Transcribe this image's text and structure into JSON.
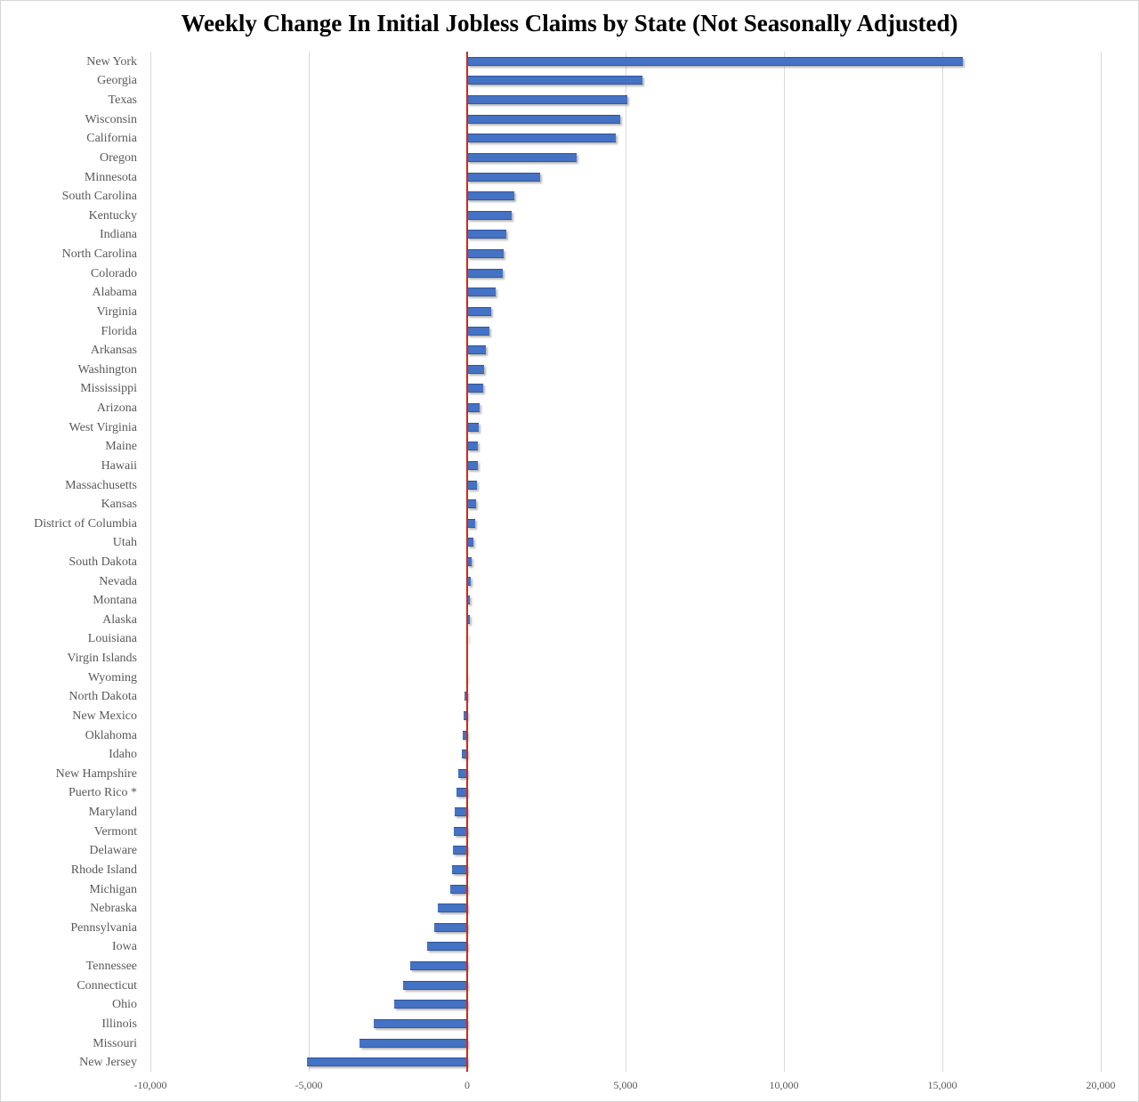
{
  "title": "Weekly Change In Initial Jobless Claims by State (Not Seasonally Adjusted)",
  "chart_data": {
    "type": "bar",
    "orientation": "horizontal",
    "title": "Weekly Change In Initial Jobless Claims by State (Not Seasonally Adjusted)",
    "xlabel": "",
    "ylabel": "",
    "xlim": [
      -10000,
      20000
    ],
    "x_ticks": [
      -10000,
      -5000,
      0,
      5000,
      10000,
      15000,
      20000
    ],
    "x_tick_labels": [
      "-10,000",
      "-5,000",
      "0",
      "5,000",
      "10,000",
      "15,000",
      "20,000"
    ],
    "grid": true,
    "legend": false,
    "zero_reference_line": true,
    "bar_color": "#4472c4",
    "zero_line_color": "#cc2a1d",
    "gridline_color": "#d9d9d9",
    "axis_label_color": "#595959",
    "categories": [
      "New York",
      "Georgia",
      "Texas",
      "Wisconsin",
      "California",
      "Oregon",
      "Minnesota",
      "South Carolina",
      "Kentucky",
      "Indiana",
      "North Carolina",
      "Colorado",
      "Alabama",
      "Virginia",
      "Florida",
      "Arkansas",
      "Washington",
      "Mississippi",
      "Arizona",
      "West Virginia",
      "Maine",
      "Hawaii",
      "Massachusetts",
      "Kansas",
      "District of Columbia",
      "Utah",
      "South Dakota",
      "Nevada",
      "Montana",
      "Alaska",
      "Louisiana",
      "Virgin Islands",
      "Wyoming",
      "North Dakota",
      "New Mexico",
      "Oklahoma",
      "Idaho",
      "New Hampshire",
      "Puerto Rico *",
      "Maryland",
      "Vermont",
      "Delaware",
      "Rhode Island",
      "Michigan",
      "Nebraska",
      "Pennsylvania",
      "Iowa",
      "Tennessee",
      "Connecticut",
      "Ohio",
      "Illinois",
      "Missouri",
      "New Jersey"
    ],
    "values": [
      15650,
      5530,
      5050,
      4840,
      4700,
      3450,
      2290,
      1480,
      1410,
      1240,
      1160,
      1110,
      890,
      770,
      700,
      590,
      545,
      515,
      400,
      370,
      350,
      330,
      300,
      270,
      240,
      210,
      140,
      100,
      90,
      80,
      10,
      0,
      -30,
      -80,
      -120,
      -150,
      -170,
      -290,
      -330,
      -390,
      -420,
      -440,
      -490,
      -520,
      -940,
      -1030,
      -1270,
      -1800,
      -2020,
      -2290,
      -2950,
      -3400,
      -5050
    ]
  }
}
